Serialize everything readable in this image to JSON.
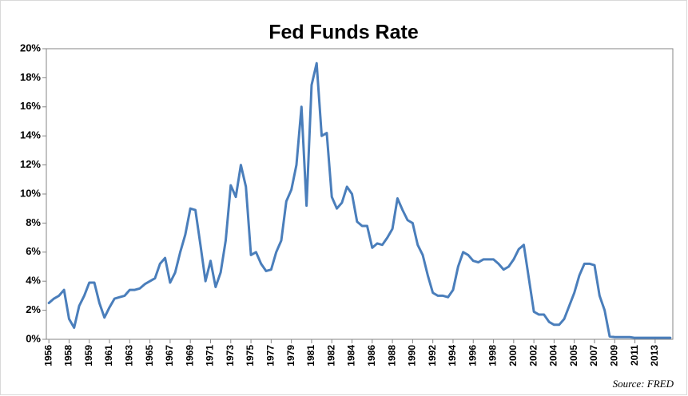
{
  "chart_data": {
    "type": "line",
    "title": "Fed Funds Rate",
    "source": "Source: FRED",
    "categories": [
      "1956",
      null,
      null,
      null,
      "1958",
      null,
      null,
      null,
      "1959",
      null,
      null,
      null,
      "1961",
      null,
      null,
      null,
      "1963",
      null,
      null,
      null,
      "1965",
      null,
      null,
      null,
      "1967",
      null,
      null,
      null,
      "1969",
      null,
      null,
      null,
      "1971",
      null,
      null,
      null,
      "1973",
      null,
      null,
      null,
      "1975",
      null,
      null,
      null,
      "1977",
      null,
      null,
      null,
      "1979",
      null,
      null,
      null,
      "1981",
      null,
      null,
      null,
      "1982",
      null,
      null,
      null,
      "1984",
      null,
      null,
      null,
      "1986",
      null,
      null,
      null,
      "1988",
      null,
      null,
      null,
      "1990",
      null,
      null,
      null,
      "1992",
      null,
      null,
      null,
      "1994",
      null,
      null,
      null,
      "1996",
      null,
      null,
      null,
      "1998",
      null,
      null,
      null,
      "2000",
      null,
      null,
      null,
      "2002",
      null,
      null,
      null,
      "2004",
      null,
      null,
      null,
      "2005",
      null,
      null,
      null,
      "2007",
      null,
      null,
      null,
      "2009",
      null,
      null,
      null,
      "2011",
      null,
      null,
      null,
      "2013",
      null,
      null,
      null
    ],
    "series": [
      {
        "name": "Fed Funds Rate",
        "color": "#4a7ebb",
        "values": [
          2.5,
          2.8,
          3.0,
          3.4,
          1.4,
          0.8,
          2.3,
          3.0,
          3.9,
          3.9,
          2.5,
          1.5,
          2.2,
          2.8,
          2.9,
          3.0,
          3.4,
          3.4,
          3.5,
          3.8,
          4.0,
          4.2,
          5.2,
          5.6,
          3.9,
          4.6,
          6.0,
          7.2,
          9.0,
          8.9,
          6.5,
          4.0,
          5.4,
          3.6,
          4.6,
          6.8,
          10.6,
          9.8,
          12.0,
          10.5,
          5.8,
          6.0,
          5.2,
          4.7,
          4.8,
          6.0,
          6.8,
          9.5,
          10.3,
          12.0,
          16.0,
          9.2,
          17.5,
          19.0,
          14.0,
          14.2,
          9.8,
          9.0,
          9.4,
          10.5,
          10.0,
          8.1,
          7.8,
          7.8,
          6.3,
          6.6,
          6.5,
          7.0,
          7.6,
          9.7,
          8.9,
          8.2,
          8.0,
          6.5,
          5.8,
          4.4,
          3.2,
          3.0,
          3.0,
          2.9,
          3.4,
          5.0,
          6.0,
          5.8,
          5.4,
          5.3,
          5.5,
          5.5,
          5.5,
          5.2,
          4.8,
          5.0,
          5.5,
          6.2,
          6.5,
          4.2,
          1.9,
          1.7,
          1.7,
          1.2,
          1.0,
          1.0,
          1.4,
          2.3,
          3.2,
          4.4,
          5.2,
          5.2,
          5.1,
          3.0,
          2.0,
          0.2,
          0.15,
          0.15,
          0.15,
          0.15,
          0.1,
          0.1,
          0.1,
          0.1,
          0.1,
          0.1,
          0.1,
          0.1
        ]
      }
    ],
    "ylim": [
      0,
      20
    ],
    "yticks": [
      {
        "value": 0,
        "label": "0%"
      },
      {
        "value": 2,
        "label": "2%"
      },
      {
        "value": 4,
        "label": "4%"
      },
      {
        "value": 6,
        "label": "6%"
      },
      {
        "value": 8,
        "label": "8%"
      },
      {
        "value": 10,
        "label": "10%"
      },
      {
        "value": 12,
        "label": "12%"
      },
      {
        "value": 14,
        "label": "14%"
      },
      {
        "value": 16,
        "label": "16%"
      },
      {
        "value": 18,
        "label": "18%"
      },
      {
        "value": 20,
        "label": "20%"
      }
    ],
    "grid": false
  }
}
